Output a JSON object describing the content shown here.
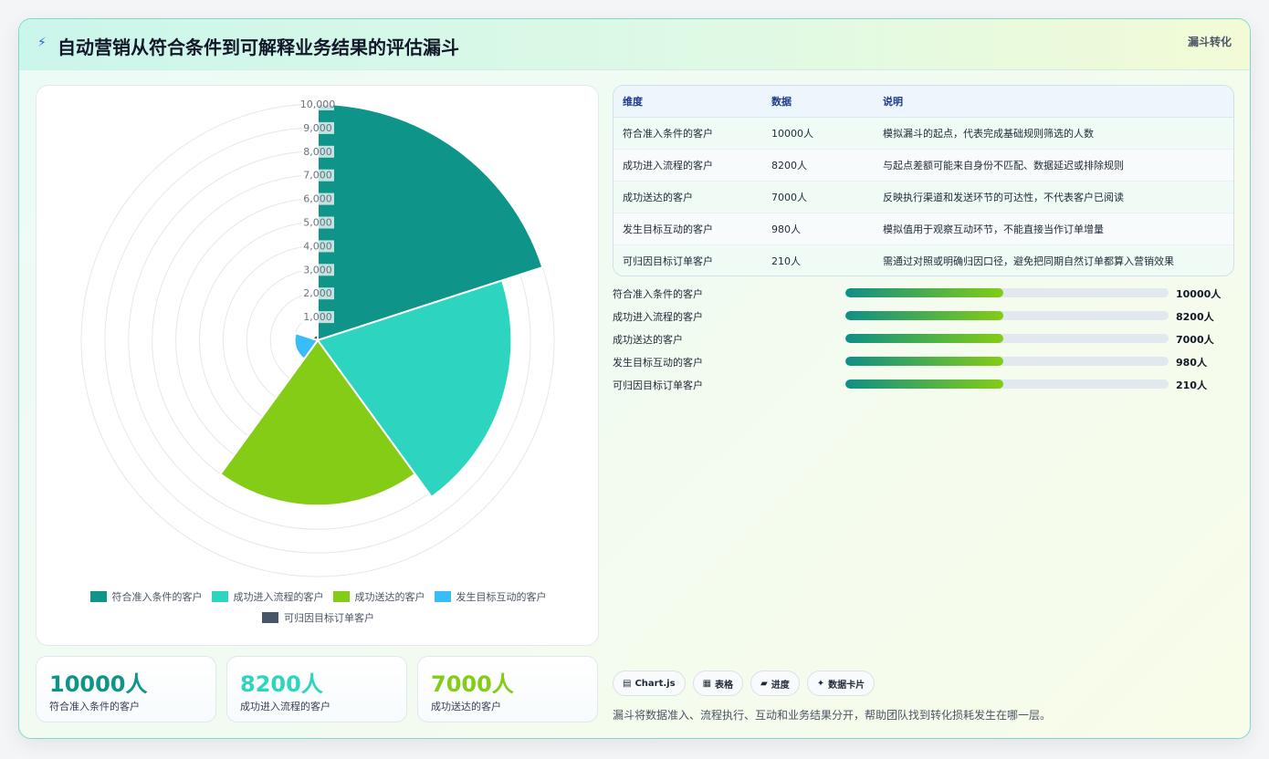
{
  "header": {
    "title": "自动营销从符合条件到可解释业务结果的评估漏斗",
    "tag": "漏斗转化",
    "icon": "bolt-icon"
  },
  "chart_data": {
    "type": "polarArea",
    "categories": [
      "符合准入条件的客户",
      "成功进入流程的客户",
      "成功送达的客户",
      "发生目标互动的客户",
      "可归因目标订单客户"
    ],
    "values": [
      10000,
      8200,
      7000,
      980,
      210
    ],
    "colors": [
      "#0e9488",
      "#2dd4bf",
      "#84cc16",
      "#38bdf8",
      "#475569"
    ],
    "rlim": [
      0,
      10000
    ],
    "ticks": [
      "1,000",
      "2,000",
      "3,000",
      "4,000",
      "5,000",
      "6,000",
      "7,000",
      "8,000",
      "9,000",
      "10,000"
    ],
    "legend": "bottom",
    "grid": true
  },
  "table": {
    "headers": [
      "维度",
      "数据",
      "说明"
    ],
    "rows": [
      [
        "符合准入条件的客户",
        "10000人",
        "模拟漏斗的起点，代表完成基础规则筛选的人数"
      ],
      [
        "成功进入流程的客户",
        "8200人",
        "与起点差额可能来自身份不匹配、数据延迟或排除规则"
      ],
      [
        "成功送达的客户",
        "7000人",
        "反映执行渠道和发送环节的可达性，不代表客户已阅读"
      ],
      [
        "发生目标互动的客户",
        "980人",
        "模拟值用于观察互动环节，不能直接当作订单增量"
      ],
      [
        "可归因目标订单客户",
        "210人",
        "需通过对照或明确归因口径，避免把同期自然订单都算入营销效果"
      ]
    ]
  },
  "progress": [
    {
      "label": "符合准入条件的客户",
      "value": "10000人",
      "fill": 0.49
    },
    {
      "label": "成功进入流程的客户",
      "value": "8200人",
      "fill": 0.49
    },
    {
      "label": "成功送达的客户",
      "value": "7000人",
      "fill": 0.49
    },
    {
      "label": "发生目标互动的客户",
      "value": "980人",
      "fill": 0.49
    },
    {
      "label": "可归因目标订单客户",
      "value": "210人",
      "fill": 0.49
    }
  ],
  "kpis": [
    {
      "value": "10000人",
      "label": "符合准入条件的客户",
      "color": "#0e9488"
    },
    {
      "value": "8200人",
      "label": "成功进入流程的客户",
      "color": "#2dd4bf"
    },
    {
      "value": "7000人",
      "label": "成功送达的客户",
      "color": "#84cc16"
    }
  ],
  "chips": [
    {
      "icon": "▤",
      "label": "Chart.js"
    },
    {
      "icon": "▦",
      "label": "表格"
    },
    {
      "icon": "▰",
      "label": "进度"
    },
    {
      "icon": "✦",
      "label": "数据卡片"
    }
  ],
  "footnote": "漏斗将数据准入、流程执行、互动和业务结果分开，帮助团队找到转化损耗发生在哪一层。"
}
